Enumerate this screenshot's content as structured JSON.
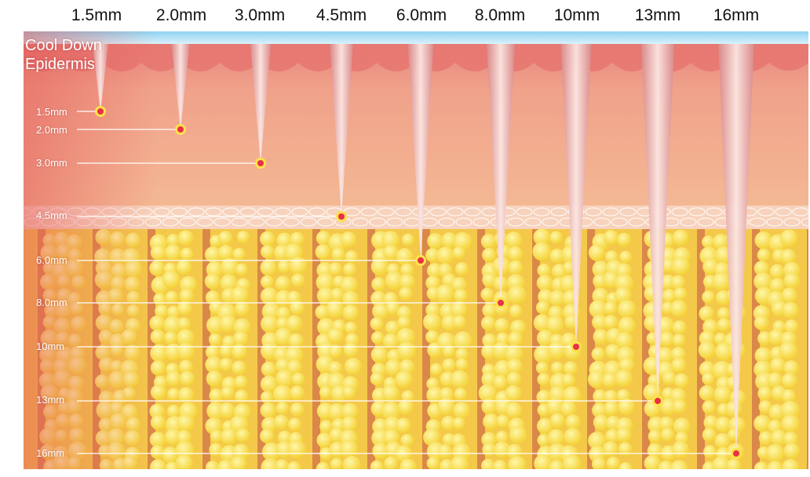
{
  "depth_labels": [
    "1.5mm",
    "2.0mm",
    "3.0mm",
    "4.5mm",
    "6.0mm",
    "8.0mm",
    "10mm",
    "13mm",
    "16mm"
  ],
  "region_label": {
    "line1": "Cool Down",
    "line2": "Epidermis"
  },
  "colors": {
    "skin_top": "#e98a82",
    "dermis": "#f2b08f",
    "fat": "#f6d63a",
    "fat_light": "#fff08a",
    "septa": "#d2714a",
    "needle": "#f7d8d4",
    "marker": "#e8304a",
    "marker_ring": "#ffe24a",
    "cool_band": "#7ec9ee"
  }
}
